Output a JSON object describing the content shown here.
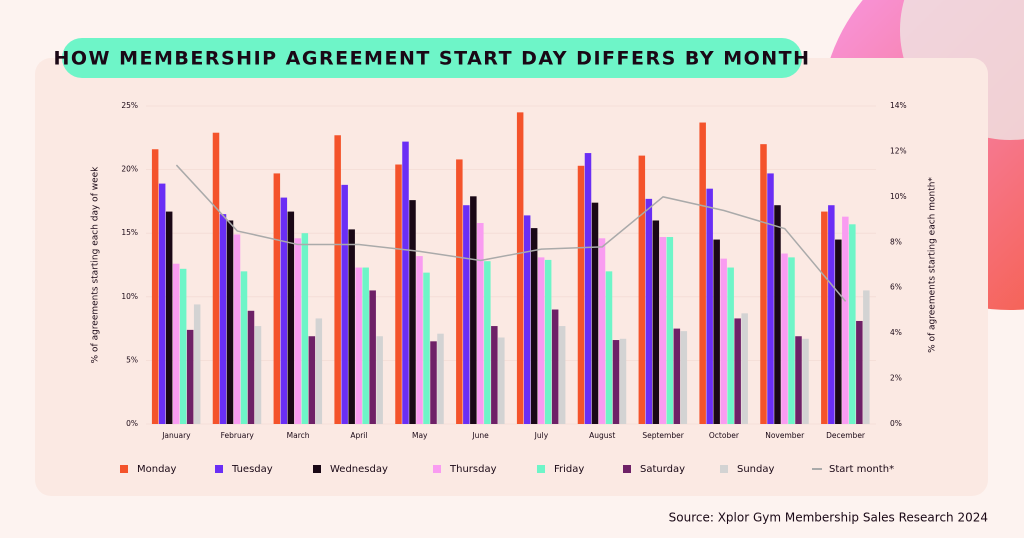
{
  "chart_data": {
    "type": "bar",
    "title": "HOW MEMBERSHIP AGREEMENT START DAY DIFFERS BY MONTH",
    "y_label": "% of agreements starting each day of week",
    "y2_label": "% of agreements starting each month*",
    "categories": [
      "January",
      "February",
      "March",
      "April",
      "May",
      "June",
      "July",
      "August",
      "September",
      "October",
      "November",
      "December"
    ],
    "series": [
      {
        "name": "Monday",
        "color": "#f4532b",
        "values": [
          21.6,
          22.9,
          19.7,
          22.7,
          20.4,
          20.8,
          24.5,
          20.3,
          21.1,
          23.7,
          22.0,
          16.7
        ]
      },
      {
        "name": "Tuesday",
        "color": "#6a2ef5",
        "values": [
          18.9,
          16.5,
          17.8,
          18.8,
          22.2,
          17.2,
          16.4,
          21.3,
          17.7,
          18.5,
          19.7,
          17.2
        ]
      },
      {
        "name": "Wednesday",
        "color": "#1a0816",
        "values": [
          16.7,
          16.0,
          16.7,
          15.3,
          17.6,
          17.9,
          15.4,
          17.4,
          16.0,
          14.5,
          17.2,
          14.5
        ]
      },
      {
        "name": "Thursday",
        "color": "#f99cf1",
        "values": [
          12.6,
          14.9,
          14.6,
          12.3,
          13.2,
          15.8,
          13.1,
          14.6,
          14.7,
          13.0,
          13.4,
          16.3
        ]
      },
      {
        "name": "Friday",
        "color": "#6ef5c8",
        "values": [
          12.2,
          12.0,
          15.0,
          12.3,
          11.9,
          12.8,
          12.9,
          12.0,
          14.7,
          12.3,
          13.1,
          15.7
        ]
      },
      {
        "name": "Saturday",
        "color": "#6e2167",
        "values": [
          7.4,
          8.9,
          6.9,
          10.5,
          6.5,
          7.7,
          9.0,
          6.6,
          7.5,
          8.3,
          6.9,
          8.1
        ]
      },
      {
        "name": "Sunday",
        "color": "#d3d3d3",
        "values": [
          9.4,
          7.7,
          8.3,
          6.9,
          7.1,
          6.8,
          7.7,
          6.7,
          7.3,
          8.7,
          6.7,
          10.5
        ]
      },
      {
        "name": "Start month*",
        "color": "#aaaaaa",
        "type": "line",
        "axis": "y2",
        "values": [
          11.4,
          8.5,
          7.9,
          7.9,
          7.6,
          7.2,
          7.7,
          7.8,
          10.0,
          9.4,
          8.6,
          5.4
        ]
      }
    ],
    "ylim": [
      0,
      25
    ],
    "yticks": [
      {
        "value": 0,
        "label": "0%"
      },
      {
        "value": 5,
        "label": "5%"
      },
      {
        "value": 10,
        "label": "10%"
      },
      {
        "value": 15,
        "label": "15%"
      },
      {
        "value": 20,
        "label": "20%"
      },
      {
        "value": 25,
        "label": "25%"
      }
    ],
    "y2lim": [
      0,
      14
    ],
    "y2ticks": [
      {
        "value": 0,
        "label": "0%"
      },
      {
        "value": 2,
        "label": "2%"
      },
      {
        "value": 4,
        "label": "4%"
      },
      {
        "value": 6,
        "label": "6%"
      },
      {
        "value": 8,
        "label": "8%"
      },
      {
        "value": 10,
        "label": "10%"
      },
      {
        "value": 12,
        "label": "12%"
      },
      {
        "value": 14,
        "label": "14%"
      }
    ],
    "grid": true
  },
  "source": "Source: Xplor Gym Membership Sales Research 2024"
}
